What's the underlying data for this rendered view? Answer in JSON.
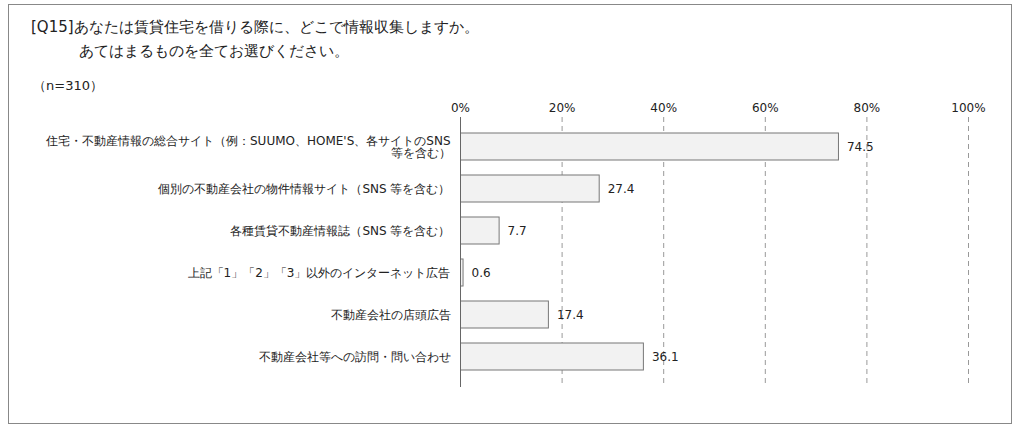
{
  "chart_data": {
    "type": "bar",
    "orientation": "horizontal",
    "title": "[Q15]あなたは賃貸住宅を借りる際に、どこで情報収集しますか。あてはまるものを全てお選びください。",
    "subtitle": "（n=310）",
    "categories": [
      "住宅・不動産情報の総合サイト（例：SUUMO、HOME'S、各サイトのSNS等を含む）",
      "個別の不動産会社の物件情報サイト（SNS 等を含む）",
      "各種賃貸不動産情報誌（SNS 等を含む）",
      "上記「1」「2」「3」以外のインターネット広告",
      "不動産会社の店頭広告",
      "不動産会社等への訪問・問い合わせ"
    ],
    "values": [
      74.5,
      27.4,
      7.7,
      0.6,
      17.4,
      36.1
    ],
    "color": "#f2f2f2",
    "xlim": [
      0,
      100
    ],
    "xticks": [
      {
        "value": 0,
        "label": "0%"
      },
      {
        "value": 20,
        "label": "20%"
      },
      {
        "value": 40,
        "label": "40%"
      },
      {
        "value": 60,
        "label": "60%"
      },
      {
        "value": 80,
        "label": "80%"
      },
      {
        "value": 100,
        "label": "100%"
      }
    ],
    "grid": true,
    "data_labels": true
  }
}
